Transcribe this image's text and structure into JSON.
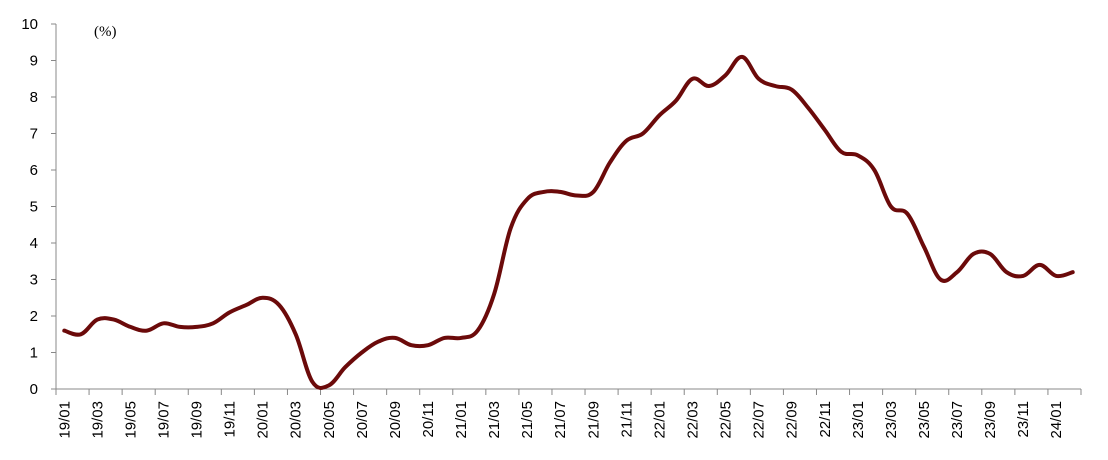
{
  "chart_data": {
    "type": "line",
    "unit_label": "(%)",
    "xlabel": "",
    "ylabel": "",
    "ylim": [
      0,
      10
    ],
    "yticks": [
      0,
      1,
      2,
      3,
      4,
      5,
      6,
      7,
      8,
      9,
      10
    ],
    "xticks": [
      "19/01",
      "19/03",
      "19/05",
      "19/07",
      "19/09",
      "19/11",
      "20/01",
      "20/03",
      "20/05",
      "20/07",
      "20/09",
      "20/11",
      "21/01",
      "21/03",
      "21/05",
      "21/07",
      "21/09",
      "21/11",
      "22/01",
      "22/03",
      "22/05",
      "22/07",
      "22/09",
      "22/11",
      "23/01",
      "23/03",
      "23/05",
      "23/07",
      "23/09",
      "23/11",
      "24/01"
    ],
    "grid": false,
    "legend": "none",
    "line_color": "#6b0a0a",
    "series": [
      {
        "x": [
          "19/01",
          "19/02",
          "19/03",
          "19/04",
          "19/05",
          "19/06",
          "19/07",
          "19/08",
          "19/09",
          "19/10",
          "19/11",
          "19/12",
          "20/01",
          "20/02",
          "20/03",
          "20/04",
          "20/05",
          "20/06",
          "20/07",
          "20/08",
          "20/09",
          "20/10",
          "20/11",
          "20/12",
          "21/01",
          "21/02",
          "21/03",
          "21/04",
          "21/05",
          "21/06",
          "21/07",
          "21/08",
          "21/09",
          "21/10",
          "21/11",
          "21/12",
          "22/01",
          "22/02",
          "22/03",
          "22/04",
          "22/05",
          "22/06",
          "22/07",
          "22/08",
          "22/09",
          "22/10",
          "22/11",
          "22/12",
          "23/01",
          "23/02",
          "23/03",
          "23/04",
          "23/05",
          "23/06",
          "23/07",
          "23/08",
          "23/09",
          "23/10",
          "23/11",
          "23/12",
          "24/01",
          "24/02"
        ],
        "values": [
          1.6,
          1.5,
          1.9,
          1.9,
          1.7,
          1.6,
          1.8,
          1.7,
          1.7,
          1.8,
          2.1,
          2.3,
          2.5,
          2.3,
          1.5,
          0.2,
          0.1,
          0.6,
          1.0,
          1.3,
          1.4,
          1.2,
          1.2,
          1.4,
          1.4,
          1.6,
          2.6,
          4.4,
          5.2,
          5.4,
          5.4,
          5.3,
          5.4,
          6.2,
          6.8,
          7.0,
          7.5,
          7.9,
          8.5,
          8.3,
          8.6,
          9.1,
          8.5,
          8.3,
          8.2,
          7.7,
          7.1,
          6.5,
          6.4,
          6.0,
          5.0,
          4.8,
          3.9,
          3.0,
          3.2,
          3.7,
          3.7,
          3.2,
          3.1,
          3.4,
          3.1,
          3.2
        ]
      }
    ]
  }
}
